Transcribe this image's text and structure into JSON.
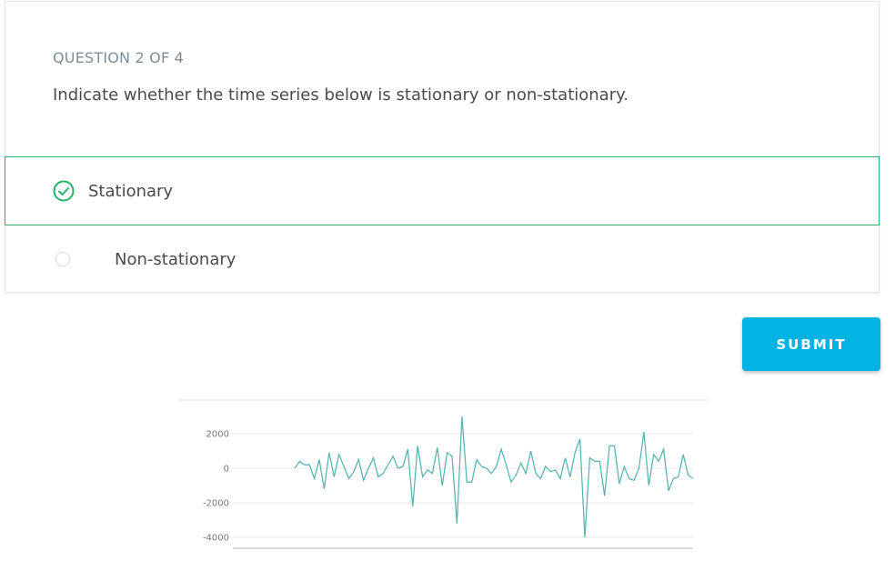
{
  "question": {
    "counter": "QUESTION 2 OF 4",
    "text": "Indicate whether the time series below is stationary or non-stationary."
  },
  "options": [
    {
      "label": "Stationary",
      "selected": true
    },
    {
      "label": "Non-stationary",
      "selected": false
    }
  ],
  "submit_label": "SUBMIT",
  "colors": {
    "accent": "#02b3e4",
    "selected_border": "#29b36a",
    "series": "#5bb5b5"
  },
  "chart_data": {
    "type": "line",
    "title": "",
    "xlabel": "",
    "ylabel": "",
    "ylim": [
      -4500,
      3200
    ],
    "yticks": [
      2000,
      0,
      -2000,
      -4000
    ],
    "grid": true,
    "series": [
      {
        "values": [
          0,
          400,
          200,
          200,
          -600,
          500,
          -1200,
          900,
          -500,
          800,
          100,
          -600,
          -200,
          500,
          -700,
          0,
          600,
          -500,
          -300,
          200,
          700,
          0,
          100,
          1100,
          -2200,
          1300,
          -500,
          -100,
          -300,
          1200,
          -1000,
          900,
          700,
          -3200,
          3000,
          -800,
          -800,
          500,
          100,
          0,
          -300,
          100,
          1100,
          200,
          -800,
          -400,
          300,
          -300,
          1000,
          -300,
          -600,
          100,
          -200,
          -100,
          -600,
          600,
          -500,
          900,
          1700,
          -4000,
          600,
          400,
          400,
          -1600,
          1300,
          1300,
          -900,
          100,
          -600,
          -700,
          0,
          2100,
          -1000,
          800,
          400,
          1100,
          -1300,
          -600,
          -500,
          800,
          -400,
          -600
        ]
      }
    ]
  }
}
